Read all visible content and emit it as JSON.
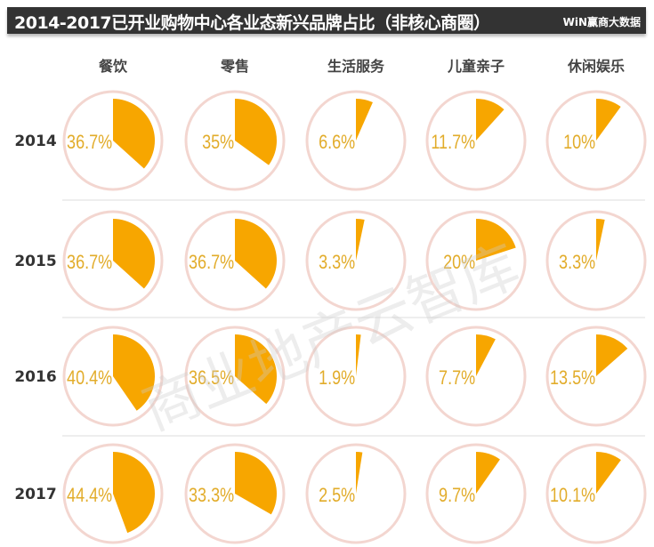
{
  "header": {
    "title": "2014-2017已开业购物中心各业态新兴品牌占比（非核心商圈）",
    "brand": "WiN赢商大数据"
  },
  "watermark": "商业地产云智库",
  "colors": {
    "slice": "#f7a600",
    "label": "#e2ac2a",
    "ring": "#f3d6d0",
    "year": "#333333",
    "header_bg": "#333333"
  },
  "chart_data": {
    "type": "pie",
    "categories": [
      "餐饮",
      "零售",
      "生活服务",
      "儿童亲子",
      "休闲娱乐"
    ],
    "years": [
      "2014",
      "2015",
      "2016",
      "2017"
    ],
    "series": [
      {
        "name": "2014",
        "values": [
          36.7,
          35,
          6.6,
          11.7,
          10
        ],
        "labels": [
          "36.7%",
          "35%",
          "6.6%",
          "11.7%",
          "10%"
        ]
      },
      {
        "name": "2015",
        "values": [
          36.7,
          36.7,
          3.3,
          20,
          3.3
        ],
        "labels": [
          "36.7%",
          "36.7%",
          "3.3%",
          "20%",
          "3.3%"
        ]
      },
      {
        "name": "2016",
        "values": [
          40.4,
          36.5,
          1.9,
          7.7,
          13.5
        ],
        "labels": [
          "40.4%",
          "36.5%",
          "1.9%",
          "7.7%",
          "13.5%"
        ]
      },
      {
        "name": "2017",
        "values": [
          44.4,
          33.3,
          2.5,
          9.7,
          10.1
        ],
        "labels": [
          "44.4%",
          "33.3%",
          "2.5%",
          "9.7%",
          "10.1%"
        ]
      }
    ],
    "unit": "%"
  }
}
